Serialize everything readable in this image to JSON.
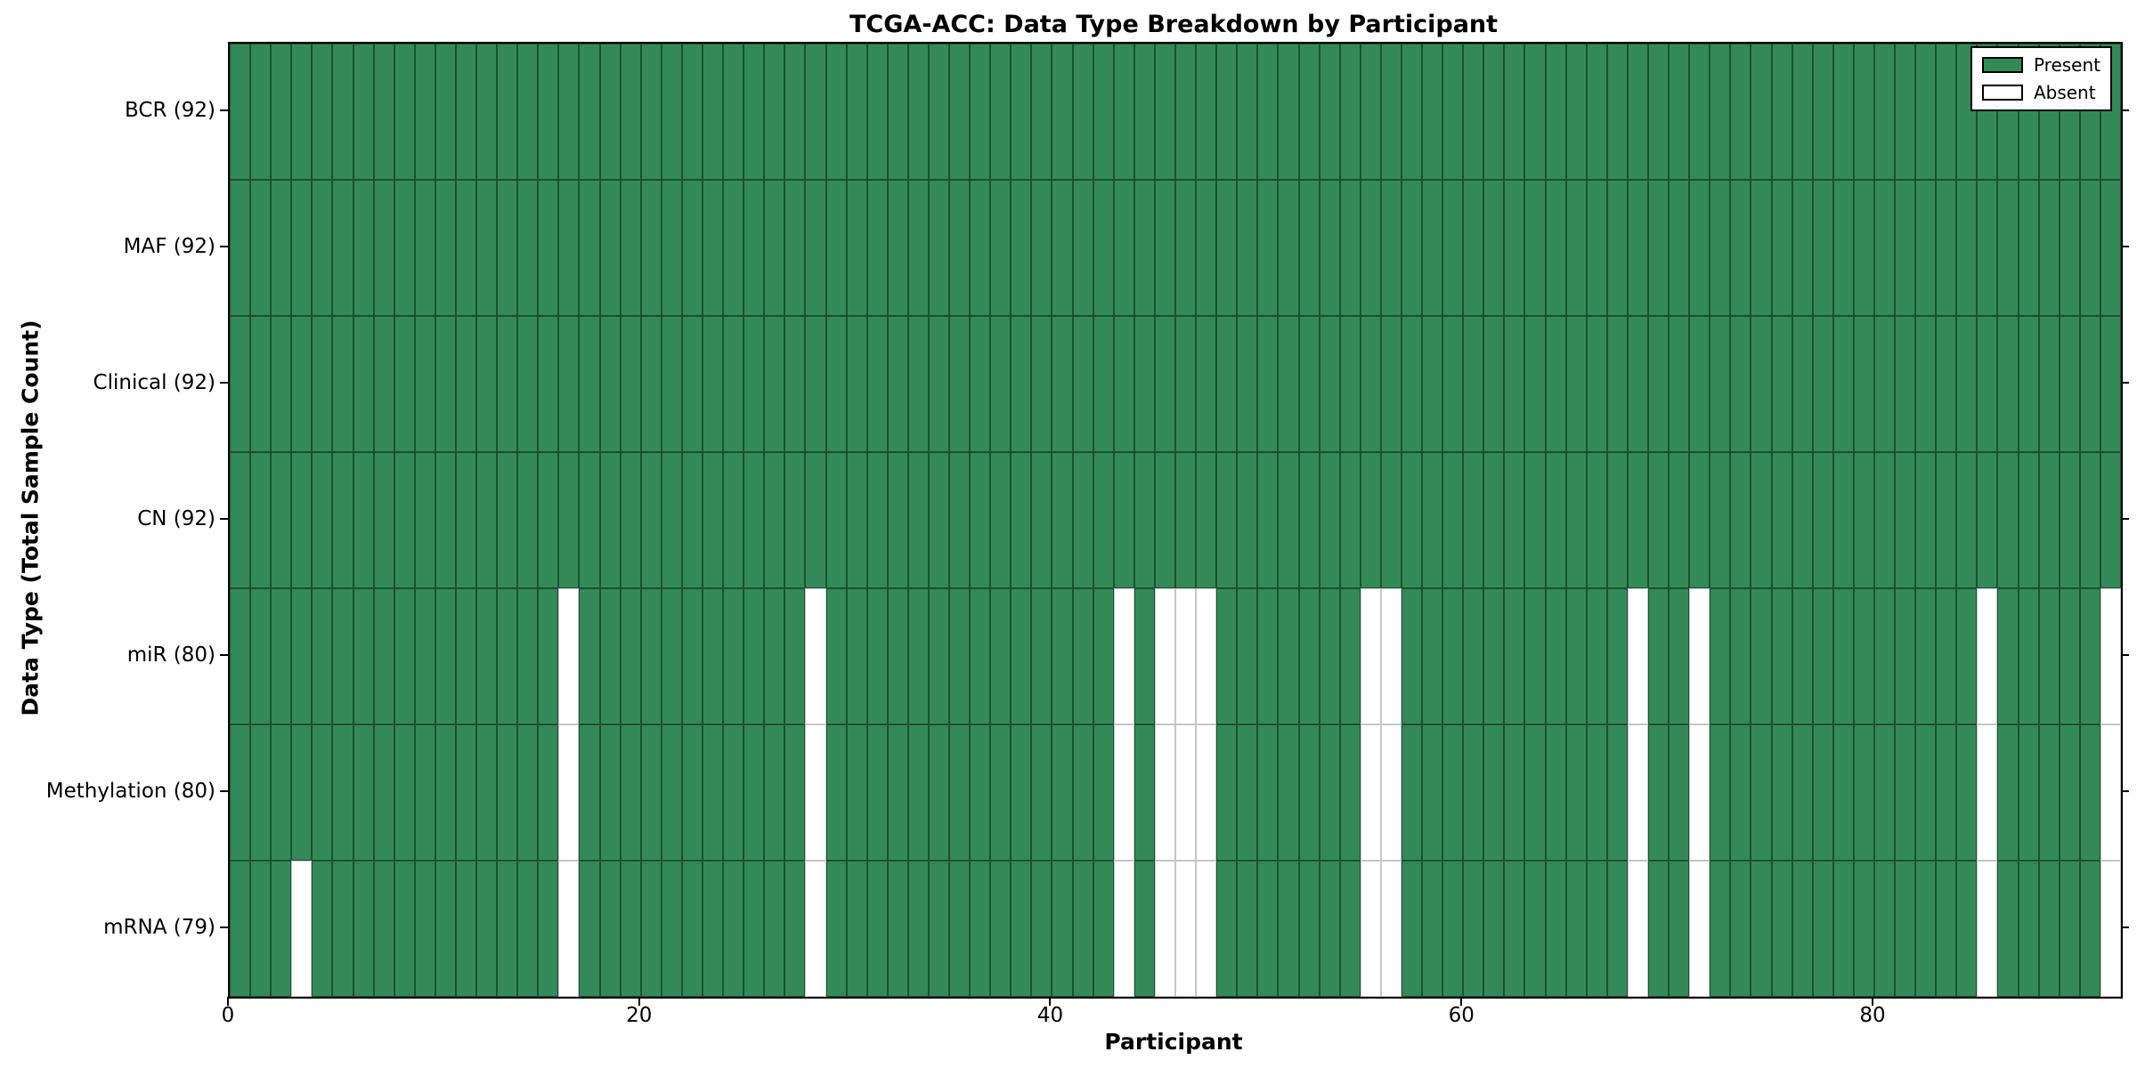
{
  "chart_data": {
    "type": "heatmap",
    "title": "TCGA-ACC: Data Type Breakdown by Participant",
    "xlabel": "Participant",
    "ylabel": "Data Type (Total Sample Count)",
    "x_ticks": [
      0,
      20,
      40,
      60,
      80
    ],
    "n_participants": 92,
    "grid_on": false,
    "legend_position": "upper right",
    "rows": [
      {
        "label": "BCR (92)",
        "present_count": 92,
        "absent": []
      },
      {
        "label": "MAF (92)",
        "present_count": 92,
        "absent": []
      },
      {
        "label": "Clinical (92)",
        "present_count": 92,
        "absent": []
      },
      {
        "label": "CN (92)",
        "present_count": 92,
        "absent": []
      },
      {
        "label": "miR (80)",
        "present_count": 80,
        "absent": [
          16,
          28,
          43,
          45,
          46,
          47,
          55,
          56,
          68,
          71,
          85,
          91
        ]
      },
      {
        "label": "Methylation (80)",
        "present_count": 80,
        "absent": [
          16,
          28,
          43,
          45,
          46,
          47,
          55,
          56,
          68,
          71,
          85,
          91
        ]
      },
      {
        "label": "mRNA (79)",
        "present_count": 79,
        "absent": [
          3,
          16,
          28,
          43,
          45,
          46,
          47,
          55,
          56,
          68,
          71,
          85,
          91
        ]
      }
    ],
    "legend": [
      {
        "label": "Present",
        "color": "#338a58"
      },
      {
        "label": "Absent",
        "color": "#ffffff"
      }
    ],
    "colors": {
      "present": "#338a58",
      "absent": "#ffffff",
      "present_edge": "rgba(0,0,0,0.42)",
      "absent_edge": "#c6c6c6",
      "frame": "#000000"
    }
  }
}
